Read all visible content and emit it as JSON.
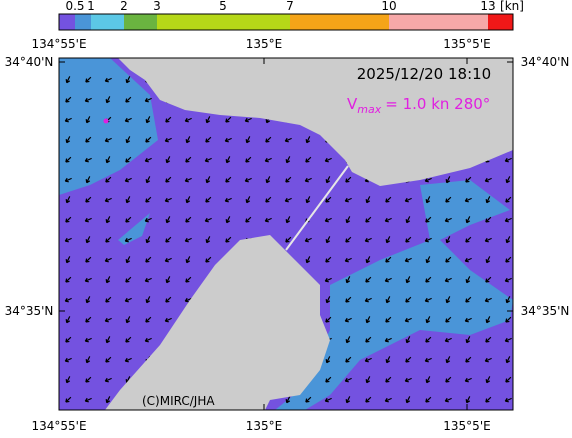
{
  "colorbar": {
    "ticks": [
      "0.5",
      "1",
      "2",
      "3",
      "5",
      "7",
      "10",
      "13"
    ],
    "unit": "[kn]"
  },
  "map": {
    "top_labels": [
      "134°55'E",
      "135°E",
      "135°5'E"
    ],
    "bottom_labels": [
      "134°55'E",
      "135°E",
      "135°5'E"
    ],
    "left_labels": [
      "34°40'N",
      "34°35'N"
    ],
    "right_labels": [
      "34°40'N",
      "34°35'N"
    ],
    "timestamp": "2025/12/20 18:10",
    "vmax": {
      "symbol": "V",
      "subscript": "max",
      "text": "= 1.0 kn 280°"
    },
    "credit": "(C)MIRC/JHA"
  }
}
